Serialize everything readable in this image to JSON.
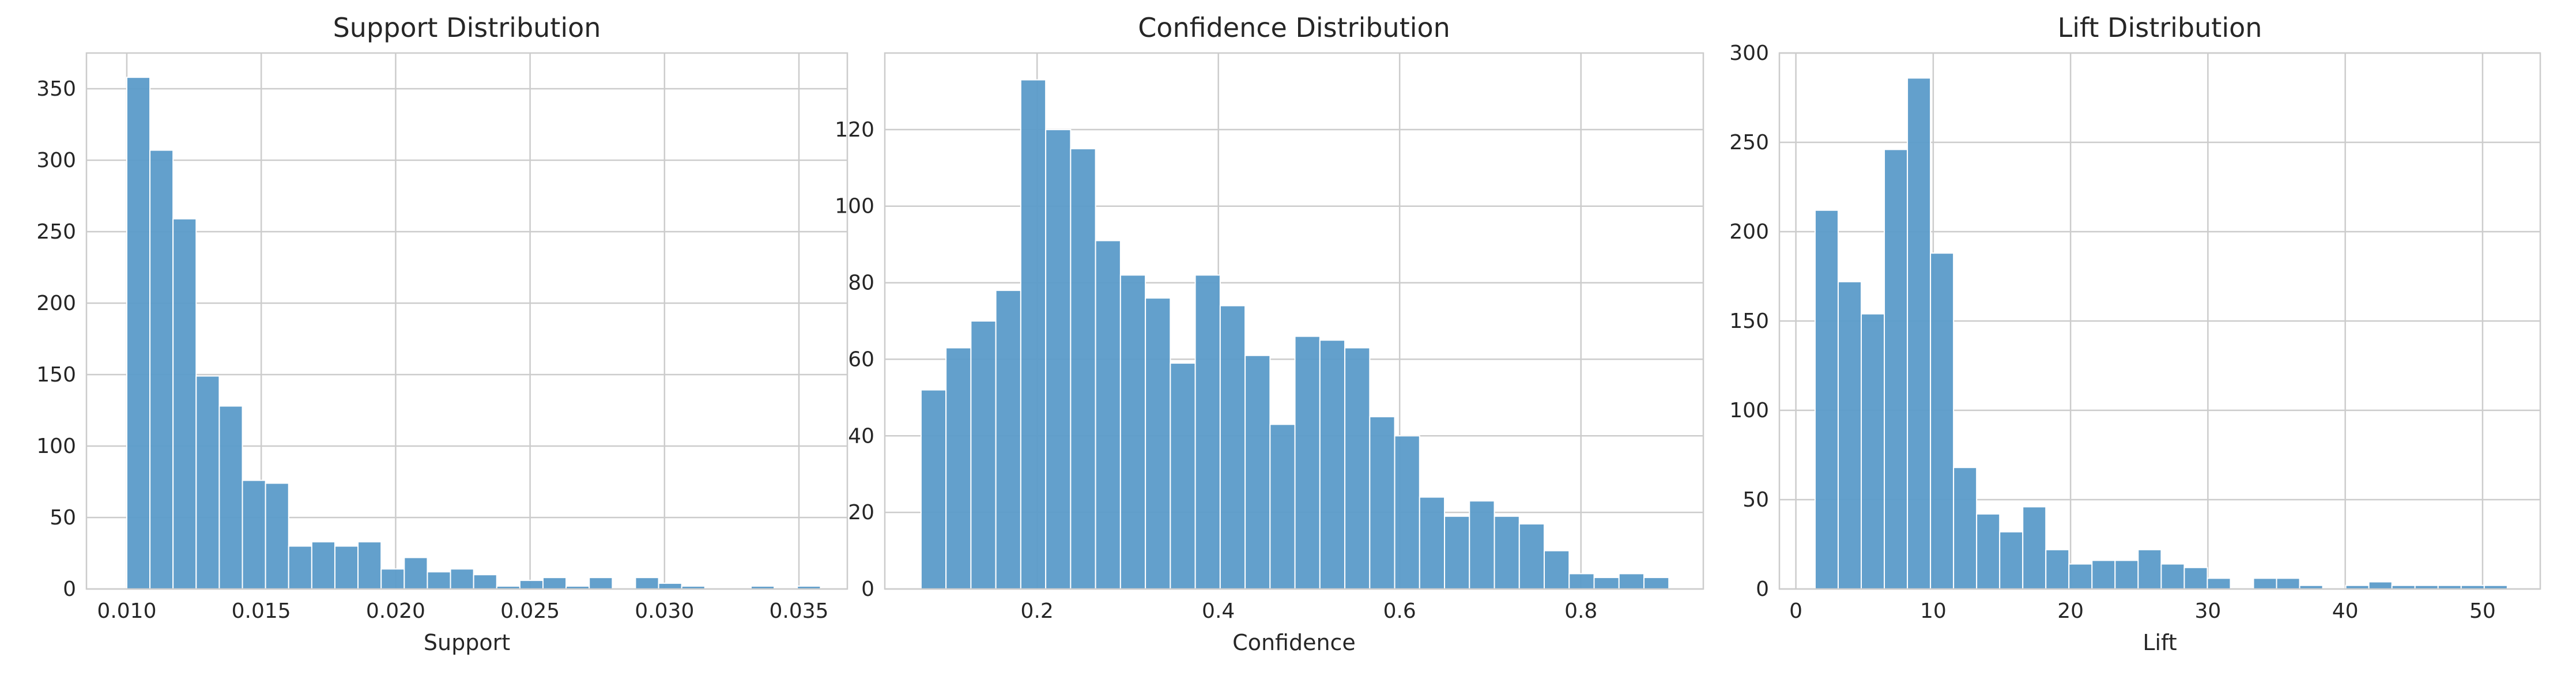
{
  "chart_data": [
    {
      "type": "bar",
      "title": "Support Distribution",
      "xlabel": "Support",
      "ylabel": "",
      "xlim": [
        0.0085,
        0.0368
      ],
      "ylim": [
        0,
        375
      ],
      "xticks": [
        0.01,
        0.015,
        0.02,
        0.025,
        0.03,
        0.035
      ],
      "xtick_labels": [
        "0.010",
        "0.015",
        "0.020",
        "0.025",
        "0.030",
        "0.035"
      ],
      "yticks": [
        0,
        50,
        100,
        150,
        200,
        250,
        300,
        350
      ],
      "ytick_labels": [
        "0",
        "50",
        "100",
        "150",
        "200",
        "250",
        "300",
        "350"
      ],
      "bin_start": 0.01,
      "bin_width": 0.00086,
      "values": [
        358,
        307,
        259,
        149,
        128,
        76,
        74,
        30,
        33,
        30,
        33,
        14,
        22,
        12,
        14,
        10,
        2,
        6,
        8,
        2,
        8,
        0,
        8,
        4,
        2,
        0,
        0,
        2,
        0,
        2
      ],
      "grid": true,
      "color": "#5b9bc9"
    },
    {
      "type": "bar",
      "title": "Confidence Distribution",
      "xlabel": "Confidence",
      "ylabel": "",
      "xlim": [
        0.032,
        0.935
      ],
      "ylim": [
        0,
        140
      ],
      "xticks": [
        0.2,
        0.4,
        0.6,
        0.8
      ],
      "xtick_labels": [
        "0.2",
        "0.4",
        "0.6",
        "0.8"
      ],
      "yticks": [
        0,
        20,
        40,
        60,
        80,
        100,
        120
      ],
      "ytick_labels": [
        "0",
        "20",
        "40",
        "60",
        "80",
        "100",
        "120"
      ],
      "bin_start": 0.072,
      "bin_width": 0.0275,
      "values": [
        52,
        63,
        70,
        78,
        133,
        120,
        115,
        91,
        82,
        76,
        59,
        82,
        74,
        61,
        43,
        66,
        65,
        63,
        45,
        40,
        24,
        19,
        23,
        19,
        17,
        10,
        4,
        3,
        4,
        3
      ],
      "grid": true,
      "color": "#5b9bc9"
    },
    {
      "type": "bar",
      "title": "Lift Distribution",
      "xlabel": "Lift",
      "ylabel": "",
      "xlim": [
        -1.2,
        54.2
      ],
      "ylim": [
        0,
        300
      ],
      "xticks": [
        0,
        10,
        20,
        30,
        40,
        50
      ],
      "xtick_labels": [
        "0",
        "10",
        "20",
        "30",
        "40",
        "50"
      ],
      "yticks": [
        0,
        50,
        100,
        150,
        200,
        250,
        300
      ],
      "ytick_labels": [
        "0",
        "50",
        "100",
        "150",
        "200",
        "250",
        "300"
      ],
      "bin_start": 1.4,
      "bin_width": 1.68,
      "values": [
        212,
        172,
        154,
        246,
        286,
        188,
        68,
        42,
        32,
        46,
        22,
        14,
        16,
        16,
        22,
        14,
        12,
        6,
        0,
        6,
        6,
        2,
        0,
        2,
        4,
        2,
        2,
        2,
        2,
        2
      ],
      "grid": true,
      "color": "#5b9bc9"
    }
  ]
}
